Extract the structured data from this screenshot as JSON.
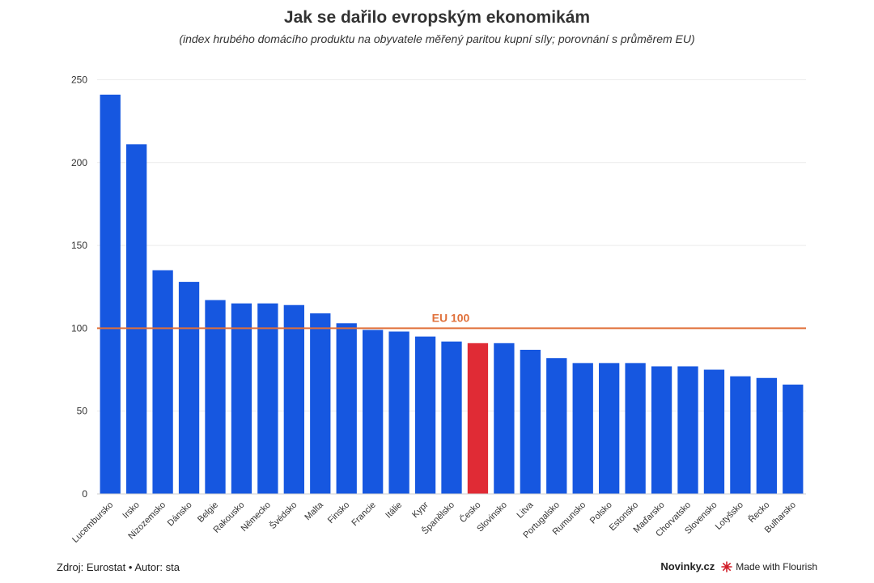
{
  "header": {
    "title": "Jak se dařilo evropským ekonomikám",
    "subtitle": "(index hrubého domácího produktu na obyvatele měřený paritou kupní síly; porovnání s průměrem EU)"
  },
  "footer": {
    "source": "Zdroj: Eurostat • Autor: sta",
    "brand": "Novinky.cz",
    "made_with": "Made with Flourish"
  },
  "colors": {
    "bar": "#1657e0",
    "highlight": "#e02b35",
    "reference_line": "#e0703a",
    "grid": "#ececec"
  },
  "chart_data": {
    "type": "bar",
    "title": "Jak se dařilo evropským ekonomikám",
    "subtitle": "(index hrubého domácího produktu na obyvatele měřený paritou kupní síly; porovnání s průměrem EU)",
    "xlabel": "",
    "ylabel": "",
    "ylim": [
      0,
      260
    ],
    "yticks": [
      0,
      50,
      100,
      150,
      200,
      250
    ],
    "grid": true,
    "categories": [
      "Lucembursko",
      "Irsko",
      "Nizozemsko",
      "Dánsko",
      "Belgie",
      "Rakousko",
      "Německo",
      "Švédsko",
      "Malta",
      "Finsko",
      "Francie",
      "Itálie",
      "Kypr",
      "Španělsko",
      "Česko",
      "Slovinsko",
      "Litva",
      "Portugalsko",
      "Rumunsko",
      "Polsko",
      "Estonsko",
      "Maďarsko",
      "Chorvatsko",
      "Slovensko",
      "Lotyšsko",
      "Řecko",
      "Bulharsko"
    ],
    "values": [
      241,
      211,
      135,
      128,
      117,
      115,
      115,
      114,
      109,
      103,
      99,
      98,
      95,
      92,
      91,
      91,
      87,
      82,
      79,
      79,
      79,
      77,
      77,
      75,
      71,
      70,
      66
    ],
    "highlight_category": "Česko",
    "reference_line": {
      "value": 100,
      "label": "EU 100"
    }
  }
}
